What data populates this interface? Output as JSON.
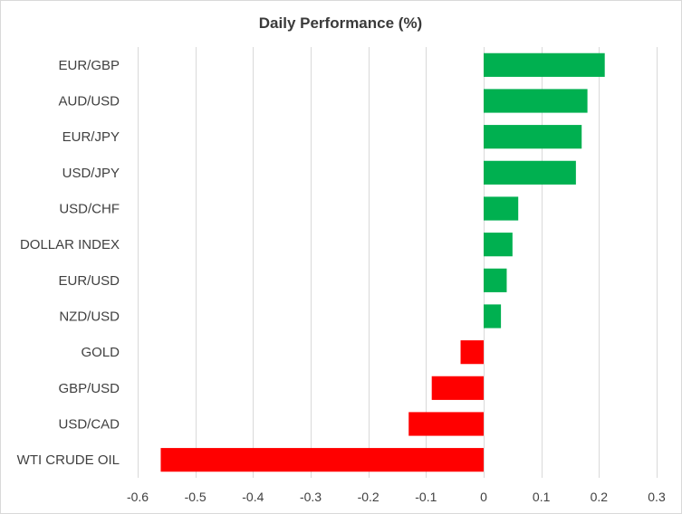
{
  "chart_data": {
    "type": "bar",
    "orientation": "horizontal",
    "title": "Daily Performance  (%)",
    "xlabel": "",
    "ylabel": "",
    "xlim": [
      -0.6,
      0.3
    ],
    "ticks": [
      "-0.6",
      "-0.5",
      "-0.4",
      "-0.3",
      "-0.2",
      "-0.1",
      "0",
      "0.1",
      "0.2",
      "0.3"
    ],
    "tick_values": [
      -0.6,
      -0.5,
      -0.4,
      -0.3,
      -0.2,
      -0.1,
      0,
      0.1,
      0.2,
      0.3
    ],
    "grid": true,
    "legend": "none",
    "positive_color": "#00b050",
    "negative_color": "#ff0000",
    "categories": [
      "EUR/GBP",
      "AUD/USD",
      "EUR/JPY",
      "USD/JPY",
      "USD/CHF",
      "DOLLAR INDEX",
      "EUR/USD",
      "NZD/USD",
      "GOLD",
      "GBP/USD",
      "USD/CAD",
      "WTI CRUDE OIL"
    ],
    "values": [
      0.21,
      0.18,
      0.17,
      0.16,
      0.06,
      0.05,
      0.04,
      0.03,
      -0.04,
      -0.09,
      -0.13,
      -0.56
    ]
  }
}
